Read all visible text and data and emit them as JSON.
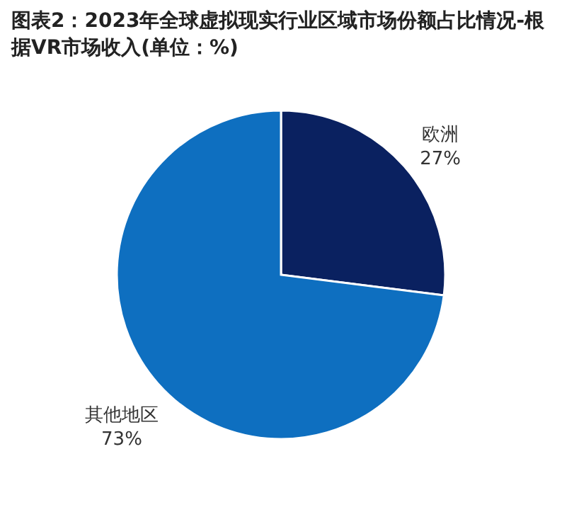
{
  "chart_data": {
    "type": "pie",
    "title": "图表2：2023年全球虚拟现实行业区域市场份额占比情况-根据VR市场收入(单位：%)",
    "categories": [
      "欧洲",
      "其他地区"
    ],
    "values": [
      27,
      73
    ],
    "colors": [
      "#0a2160",
      "#0e6fc0"
    ],
    "value_labels": [
      "27%",
      "73%"
    ]
  }
}
